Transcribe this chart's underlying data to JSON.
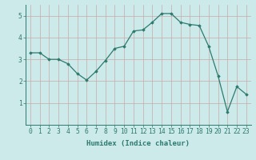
{
  "x": [
    0,
    1,
    2,
    3,
    4,
    5,
    6,
    7,
    8,
    9,
    10,
    11,
    12,
    13,
    14,
    15,
    16,
    17,
    18,
    19,
    20,
    21,
    22,
    23
  ],
  "y": [
    3.3,
    3.3,
    3.0,
    3.0,
    2.8,
    2.35,
    2.05,
    2.45,
    2.95,
    3.5,
    3.6,
    4.3,
    4.35,
    4.7,
    5.1,
    5.1,
    4.7,
    4.6,
    4.55,
    3.6,
    2.25,
    0.6,
    1.75,
    1.4
  ],
  "line_color": "#2d7a6e",
  "marker": "D",
  "marker_size": 1.8,
  "bg_color": "#cceaea",
  "grid_color": "#c8a8a8",
  "xlabel": "Humidex (Indice chaleur)",
  "ylim": [
    0.0,
    5.5
  ],
  "xlim": [
    -0.5,
    23.5
  ],
  "yticks": [
    1,
    2,
    3,
    4,
    5
  ],
  "xticks": [
    0,
    1,
    2,
    3,
    4,
    5,
    6,
    7,
    8,
    9,
    10,
    11,
    12,
    13,
    14,
    15,
    16,
    17,
    18,
    19,
    20,
    21,
    22,
    23
  ],
  "xlabel_fontsize": 6.5,
  "tick_fontsize": 5.8
}
